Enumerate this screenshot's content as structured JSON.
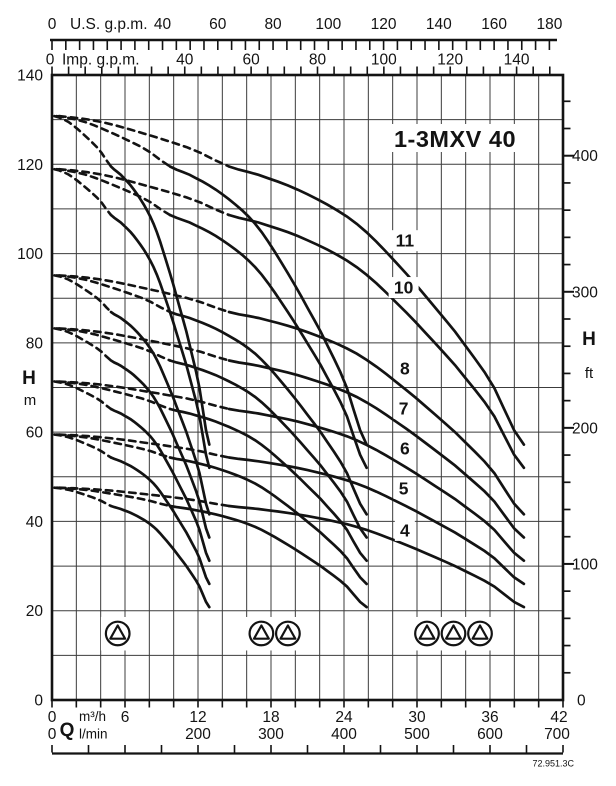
{
  "chart_data": {
    "type": "line",
    "title": "1-3MXV 40",
    "drawing_code": "72.951.3C",
    "colors": {
      "ink": "#131313",
      "grid": "#3c3c3c",
      "background": "#ffffff"
    },
    "x_axes": {
      "m3h": {
        "label_bold": "Q",
        "unit": "m³/h",
        "min": 0,
        "max": 42,
        "grid_step": 2,
        "tick_labels": [
          0,
          6,
          12,
          18,
          24,
          30,
          36,
          42
        ]
      },
      "lmin": {
        "unit": "l/min",
        "min": 0,
        "max": 700,
        "tick_step": 50,
        "tick_labels": [
          0,
          200,
          300,
          400,
          500,
          600,
          700
        ]
      },
      "us_gpm": {
        "title": "U.S. g.p.m.",
        "zero_label": "0",
        "m3h_per_unit": 0.22712,
        "tick_step": 5,
        "tick_max": 180,
        "tick_labels": [
          40,
          60,
          80,
          100,
          120,
          140,
          160,
          180
        ]
      },
      "imp_gpm": {
        "title": "Imp. g.p.m.",
        "zero_label": "0",
        "m3h_per_unit": 0.27276,
        "tick_step": 5,
        "tick_max": 150,
        "tick_labels": [
          40,
          60,
          80,
          100,
          120,
          140
        ]
      }
    },
    "y_axes": {
      "m": {
        "label": "H",
        "unit": "m",
        "min": 0,
        "max": 140,
        "grid_step": 10,
        "tick_labels": [
          20,
          40,
          60,
          80,
          100,
          120,
          140
        ],
        "zero_label": "0"
      },
      "ft": {
        "label": "H",
        "unit": "ft",
        "m_per_ft": 0.3048,
        "tick_step": 20,
        "tick_max": 440,
        "tick_labels": [
          100,
          200,
          300,
          400
        ],
        "zero_label": "0"
      }
    },
    "pump_curves": {
      "stages": [
        4,
        5,
        6,
        7,
        8,
        10,
        11
      ],
      "shutoff_head_per_stage_m": 11.9,
      "single_pump_q_max_m3h": 12.93,
      "pump_counts": [
        1,
        2,
        3
      ],
      "dashed_below_fraction": 0.375,
      "head_profile": [
        [
          0.0,
          1.0
        ],
        [
          0.1,
          0.99
        ],
        [
          0.2,
          0.968
        ],
        [
          0.3,
          0.942
        ],
        [
          0.375,
          0.913
        ],
        [
          0.45,
          0.895
        ],
        [
          0.55,
          0.862
        ],
        [
          0.65,
          0.812
        ],
        [
          0.75,
          0.73
        ],
        [
          0.85,
          0.635
        ],
        [
          0.93,
          0.545
        ],
        [
          1.0,
          0.437
        ]
      ]
    },
    "stage_labels": [
      {
        "text": "11",
        "q_m3h": 29.0,
        "h_m": 103.0
      },
      {
        "text": "10",
        "q_m3h": 28.9,
        "h_m": 92.5
      },
      {
        "text": "8",
        "q_m3h": 29.0,
        "h_m": 74.4
      },
      {
        "text": "7",
        "q_m3h": 28.9,
        "h_m": 65.4
      },
      {
        "text": "6",
        "q_m3h": 29.0,
        "h_m": 56.4
      },
      {
        "text": "5",
        "q_m3h": 28.9,
        "h_m": 47.5
      },
      {
        "text": "4",
        "q_m3h": 29.0,
        "h_m": 38.1
      }
    ],
    "pump_icon_groups": [
      {
        "count": 1,
        "center_q_m3h": 5.4,
        "center_h_m": 14.9
      },
      {
        "count": 2,
        "center_q_m3h": 18.3,
        "center_h_m": 14.9
      },
      {
        "count": 3,
        "center_q_m3h": 33.0,
        "center_h_m": 14.9
      }
    ]
  }
}
